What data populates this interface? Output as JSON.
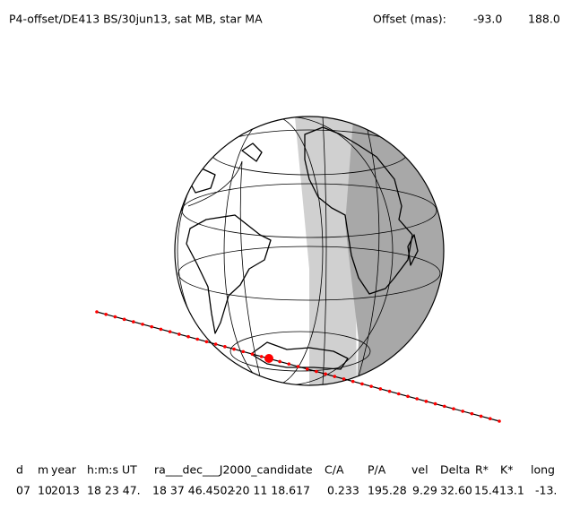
{
  "header": {
    "title": "P4-offset/DE413 BS/30jun13, sat MB, star MA",
    "offset_label": "Offset (mas):",
    "offset_values": [
      "-93.0",
      "188.0"
    ]
  },
  "table": {
    "headers": [
      "d",
      "m",
      "year",
      "h:m:s UT",
      "ra___dec___J2000_candidate",
      "C/A",
      "P/A",
      "vel",
      "Delta",
      "R*",
      "K*",
      "long"
    ],
    "row": [
      "07",
      "10",
      "2013",
      "18 23 47.",
      "18 37 46.4502",
      "-20 11 18.617",
      "0.233",
      "195.28",
      "9.29",
      "32.60",
      "15.4",
      "13.1",
      "-13."
    ]
  }
}
